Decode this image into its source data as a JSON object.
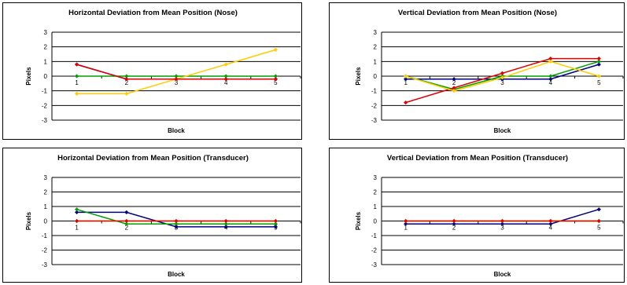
{
  "chart_data": [
    {
      "type": "line",
      "title": "Horizontal Deviation from Mean Position (Nose)",
      "xlabel": "Block",
      "ylabel": "Pixels",
      "x": [
        "1",
        "2",
        "3",
        "4",
        "5"
      ],
      "ylim": [
        -3,
        3
      ],
      "yticks": [
        "3",
        "2",
        "1",
        "0",
        "-1",
        "-2",
        "-3"
      ],
      "grid": true,
      "legend": "none",
      "series": [
        {
          "color": "#000080",
          "values": [
            0.8,
            -0.2,
            -0.2,
            -0.2,
            -0.2
          ]
        },
        {
          "color": "#00A000",
          "values": [
            0,
            0,
            0,
            0,
            0
          ]
        },
        {
          "color": "#FFCC00",
          "values": [
            -1.2,
            -1.2,
            -0.2,
            0.8,
            1.8
          ]
        },
        {
          "color": "#E00000",
          "values": [
            0.8,
            -0.2,
            -0.2,
            -0.2,
            -0.2
          ]
        }
      ]
    },
    {
      "type": "line",
      "title": "Vertical Deviation from Mean Position (Nose)",
      "xlabel": "Block",
      "ylabel": "Pixels",
      "x": [
        "1",
        "2",
        "3",
        "4",
        "5"
      ],
      "ylim": [
        -3,
        3
      ],
      "yticks": [
        "3",
        "2",
        "1",
        "0",
        "-1",
        "-2",
        "-3"
      ],
      "grid": true,
      "legend": "none",
      "series": [
        {
          "color": "#000080",
          "values": [
            -0.2,
            -0.2,
            -0.2,
            -0.2,
            0.8
          ]
        },
        {
          "color": "#00A000",
          "values": [
            0,
            -0.9,
            0,
            0,
            1
          ]
        },
        {
          "color": "#E00000",
          "values": [
            -1.8,
            -0.8,
            0.2,
            1.2,
            1.2
          ]
        },
        {
          "color": "#FFCC00",
          "values": [
            0,
            -1.0,
            -0.1,
            1.0,
            0
          ]
        }
      ]
    },
    {
      "type": "line",
      "title": "Horizontal Deviation from Mean Position (Transducer)",
      "xlabel": "Block",
      "ylabel": "Pixels",
      "x": [
        "1",
        "2",
        "3",
        "4",
        "5"
      ],
      "ylim": [
        -3,
        3
      ],
      "yticks": [
        "3",
        "2",
        "1",
        "0",
        "-1",
        "-2",
        "-3"
      ],
      "grid": true,
      "legend": "none",
      "series": [
        {
          "color": "#000080",
          "values": [
            0.6,
            0.6,
            -0.4,
            -0.4,
            -0.4
          ]
        },
        {
          "color": "#00A000",
          "values": [
            0.8,
            -0.2,
            -0.2,
            -0.2,
            -0.2
          ]
        },
        {
          "color": "#FFCC00",
          "values": [
            0,
            0,
            0,
            0,
            0
          ]
        },
        {
          "color": "#E00000",
          "values": [
            0,
            0,
            0,
            0,
            0
          ]
        }
      ]
    },
    {
      "type": "line",
      "title": "Vertical Deviation from Mean Position (Transducer)",
      "xlabel": "Block",
      "ylabel": "Pixels",
      "x": [
        "1",
        "2",
        "3",
        "4",
        "5"
      ],
      "ylim": [
        -3,
        3
      ],
      "yticks": [
        "3",
        "2",
        "1",
        "0",
        "-1",
        "-2",
        "-3"
      ],
      "grid": true,
      "legend": "none",
      "series": [
        {
          "color": "#000080",
          "values": [
            -0.2,
            -0.2,
            -0.2,
            -0.2,
            0.8
          ]
        },
        {
          "color": "#00A000",
          "values": [
            0,
            0,
            0,
            0,
            0
          ]
        },
        {
          "color": "#FFCC00",
          "values": [
            0,
            0,
            0,
            0,
            0
          ]
        },
        {
          "color": "#E00000",
          "values": [
            0,
            0,
            0,
            0,
            0
          ]
        }
      ]
    }
  ]
}
